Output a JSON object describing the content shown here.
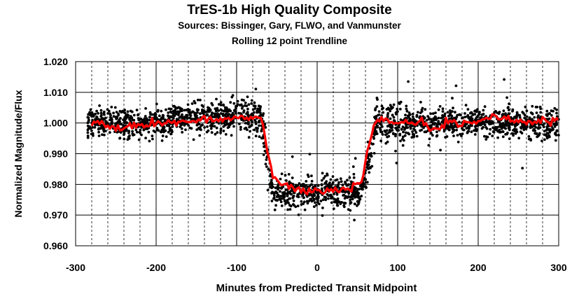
{
  "chart_data": {
    "type": "scatter",
    "title": "TrES-1b High Quality Composite",
    "subtitle": "Sources: Bissinger, Gary, FLWO, and Vanmunster",
    "subtitle2": "Rolling 12 point Trendline",
    "xlabel": "Minutes from Predicted Transit Midpoint",
    "ylabel": "Normalized Magnitude/Flux",
    "xlim": [
      -300,
      300
    ],
    "ylim": [
      0.96,
      1.02
    ],
    "x_ticks": [
      "-300",
      "-200",
      "-100",
      "0",
      "100",
      "200",
      "300"
    ],
    "y_ticks": [
      "0.960",
      "0.970",
      "0.980",
      "0.990",
      "1.000",
      "1.010",
      "1.020"
    ],
    "x_minor_step": 20,
    "grid": "major solid, minor dashed vertical",
    "legend": "none",
    "colors": {
      "points": "#000000",
      "trendline": "#ff0000"
    },
    "light_curve_model": {
      "baseline": 1.0,
      "depth_bottom": 0.9775,
      "ingress_start": -70,
      "ingress_end": -55,
      "egress_start": 55,
      "egress_end": 75,
      "pre_transit_bump": 1.002
    },
    "trendline": {
      "x": [
        -280,
        -260,
        -240,
        -220,
        -200,
        -180,
        -160,
        -140,
        -120,
        -100,
        -80,
        -70,
        -62,
        -55,
        -40,
        -20,
        0,
        20,
        40,
        55,
        62,
        68,
        75,
        90,
        110,
        130,
        140,
        150,
        160,
        180,
        200,
        220,
        240,
        260,
        280,
        300
      ],
      "y": [
        1.0,
        0.999,
        0.998,
        0.9995,
        1.0,
        1.0005,
        1.0,
        1.0012,
        1.0008,
        1.0015,
        1.002,
        1.002,
        0.992,
        0.982,
        0.9795,
        0.978,
        0.9775,
        0.978,
        0.9785,
        0.981,
        0.99,
        0.997,
        1.002,
        1.0005,
        1.0,
        1.001,
        0.998,
        0.997,
        1.0,
        1.0,
        1.0005,
        1.0025,
        1.001,
        1.0,
        1.001,
        1.001
      ]
    }
  }
}
